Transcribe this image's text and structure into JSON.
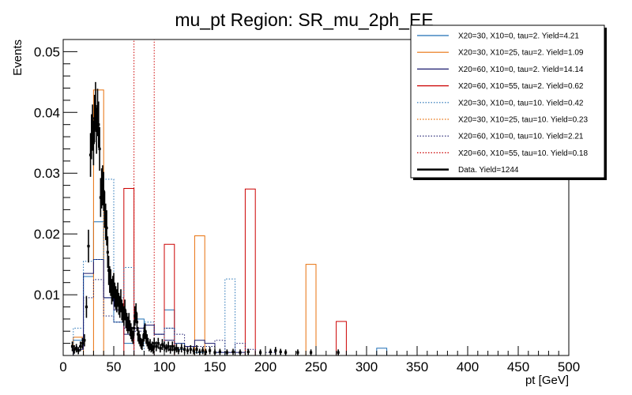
{
  "chart_data": {
    "type": "histogram",
    "title": "mu_pt Region: SR_mu_2ph_EE",
    "xlabel": "pt [GeV]",
    "ylabel": "Events",
    "xlim": [
      0,
      500
    ],
    "ylim": [
      0,
      0.052
    ],
    "x_ticks": [
      0,
      50,
      100,
      150,
      200,
      250,
      300,
      350,
      400,
      450,
      500
    ],
    "y_ticks": [
      0.01,
      0.02,
      0.03,
      0.04,
      0.05
    ],
    "y_tick_labels": [
      "0.01",
      "0.02",
      "0.03",
      "0.04",
      "0.05"
    ],
    "bin_width": 10,
    "bin_start": 0,
    "grid": false,
    "legend_position": "top-right",
    "series": [
      {
        "name": "X20=30, X10=0, tau=2. Yield=4.21",
        "color": "#1f6fb4",
        "style": "solid",
        "values": [
          0,
          0.0025,
          0.013,
          0.022,
          0.0095,
          0.0055,
          0.002,
          0.006,
          0.005,
          0.0035,
          0.0075,
          0.001,
          0.0015,
          0.0005,
          0,
          0.0005,
          0,
          0,
          0,
          0,
          0,
          0,
          0,
          0,
          0,
          0,
          0,
          0,
          0,
          0,
          0,
          0.0012,
          0,
          0,
          0,
          0,
          0,
          0,
          0,
          0,
          0,
          0,
          0,
          0,
          0,
          0,
          0,
          0,
          0,
          0
        ]
      },
      {
        "name": "X20=30, X10=25, tau=2. Yield=1.09",
        "color": "#e8700c",
        "style": "solid",
        "values": [
          0,
          0.003,
          0,
          0.0437,
          0,
          0,
          0,
          0,
          0,
          0,
          0,
          0,
          0,
          0.0197,
          0,
          0,
          0,
          0,
          0,
          0,
          0,
          0,
          0,
          0,
          0.015,
          0,
          0,
          0,
          0,
          0,
          0,
          0,
          0,
          0,
          0,
          0,
          0,
          0,
          0,
          0,
          0,
          0,
          0,
          0,
          0,
          0,
          0,
          0,
          0,
          0
        ]
      },
      {
        "name": "X20=60, X10=0, tau=2. Yield=14.14",
        "color": "#1a1a6e",
        "style": "solid",
        "values": [
          0,
          0.001,
          0.0135,
          0.0158,
          0.0095,
          0.0075,
          0.0035,
          0.0045,
          0.005,
          0.0035,
          0.0025,
          0.002,
          0.0015,
          0.0025,
          0.002,
          0.0005,
          0.0005,
          0.0005,
          0,
          0,
          0,
          0,
          0,
          0,
          0,
          0,
          0,
          0,
          0,
          0,
          0,
          0,
          0,
          0,
          0,
          0,
          0,
          0,
          0,
          0,
          0,
          0,
          0,
          0,
          0,
          0,
          0,
          0,
          0,
          0
        ]
      },
      {
        "name": "X20=60, X10=55, tau=2. Yield=0.62",
        "color": "#cc0000",
        "style": "solid",
        "values": [
          0,
          0,
          0,
          0,
          0,
          0,
          0.0275,
          0,
          0,
          0,
          0.0183,
          0,
          0,
          0,
          0,
          0,
          0,
          0,
          0.0274,
          0,
          0,
          0,
          0,
          0,
          0,
          0,
          0,
          0.0056,
          0,
          0,
          0,
          0,
          0,
          0,
          0,
          0,
          0,
          0,
          0,
          0,
          0,
          0,
          0,
          0,
          0,
          0,
          0,
          0,
          0,
          0
        ]
      },
      {
        "name": "X20=30, X10=0, tau=10. Yield=0.42",
        "color": "#1f6fb4",
        "style": "dotted",
        "values": [
          0,
          0.0045,
          0.0155,
          0.0158,
          0.029,
          0.0095,
          0.0145,
          0,
          0.0055,
          0,
          0.0045,
          0.002,
          0,
          0,
          0,
          0,
          0.0126,
          0,
          0,
          0,
          0,
          0,
          0,
          0,
          0,
          0,
          0,
          0,
          0,
          0,
          0,
          0,
          0,
          0,
          0,
          0,
          0,
          0,
          0,
          0,
          0,
          0,
          0,
          0,
          0,
          0,
          0,
          0,
          0,
          0
        ]
      },
      {
        "name": "X20=30, X10=25, tau=10. Yield=0.23",
        "color": "#e8700c",
        "style": "dotted",
        "values": [
          0,
          0,
          0,
          0,
          0,
          0,
          0,
          0,
          0,
          0,
          0,
          0,
          0,
          0,
          0,
          0,
          0,
          0,
          0,
          0,
          0,
          0,
          0,
          0,
          0,
          0,
          0,
          0,
          0,
          0,
          0,
          0,
          0,
          0,
          0,
          0,
          0,
          0,
          0,
          0,
          0,
          0,
          0,
          0,
          0,
          0,
          0,
          0,
          0,
          0
        ]
      },
      {
        "name": "X20=60, X10=0, tau=10. Yield=2.21",
        "color": "#1a1a6e",
        "style": "dotted",
        "values": [
          0,
          0.0015,
          0.0095,
          0.0125,
          0.0065,
          0.0055,
          0.0045,
          0.004,
          0.005,
          0.0035,
          0.0045,
          0.0035,
          0.0015,
          0.0015,
          0.0015,
          0.0025,
          0.0005,
          0.002,
          0.001,
          0,
          0.0005,
          0,
          0,
          0,
          0,
          0,
          0,
          0,
          0,
          0,
          0,
          0,
          0,
          0,
          0,
          0,
          0,
          0,
          0,
          0,
          0,
          0,
          0,
          0,
          0,
          0,
          0,
          0,
          0,
          0
        ]
      },
      {
        "name": "X20=60, X10=55, tau=10. Yield=0.18",
        "color": "#cc0000",
        "style": "dotted",
        "values": [
          0,
          0,
          0,
          0,
          0,
          0,
          0,
          0.052,
          0.052,
          0,
          0,
          0,
          0,
          0,
          0,
          0,
          0,
          0,
          0,
          0,
          0,
          0,
          0,
          0,
          0,
          0,
          0,
          0,
          0,
          0,
          0,
          0,
          0,
          0,
          0,
          0,
          0,
          0,
          0,
          0,
          0,
          0,
          0,
          0,
          0,
          0,
          0,
          0,
          0,
          0
        ]
      },
      {
        "name": "Data. Yield=1244",
        "color": "#000000",
        "style": "points",
        "points": [
          {
            "x": 9,
            "y": 0.0015,
            "e": 0.0008
          },
          {
            "x": 11,
            "y": 0.001,
            "e": 0.0007
          },
          {
            "x": 13,
            "y": 0.0012,
            "e": 0.0007
          },
          {
            "x": 15,
            "y": 0.0008,
            "e": 0.0006
          },
          {
            "x": 17,
            "y": 0.0015,
            "e": 0.0008
          },
          {
            "x": 19,
            "y": 0.002,
            "e": 0.0009
          },
          {
            "x": 21,
            "y": 0.0025,
            "e": 0.001
          },
          {
            "x": 23,
            "y": 0.008,
            "e": 0.0018
          },
          {
            "x": 25,
            "y": 0.018,
            "e": 0.0027
          },
          {
            "x": 27,
            "y": 0.033,
            "e": 0.0036
          },
          {
            "x": 28,
            "y": 0.036,
            "e": 0.0037
          },
          {
            "x": 29,
            "y": 0.0375,
            "e": 0.0038
          },
          {
            "x": 30,
            "y": 0.035,
            "e": 0.0037
          },
          {
            "x": 31,
            "y": 0.039,
            "e": 0.0039
          },
          {
            "x": 32,
            "y": 0.041,
            "e": 0.004
          },
          {
            "x": 33,
            "y": 0.037,
            "e": 0.0038
          },
          {
            "x": 34,
            "y": 0.04,
            "e": 0.0039
          },
          {
            "x": 35,
            "y": 0.038,
            "e": 0.0038
          },
          {
            "x": 36,
            "y": 0.034,
            "e": 0.0036
          },
          {
            "x": 37,
            "y": 0.026,
            "e": 0.0032
          },
          {
            "x": 38,
            "y": 0.0275,
            "e": 0.0033
          },
          {
            "x": 39,
            "y": 0.028,
            "e": 0.0033
          },
          {
            "x": 40,
            "y": 0.027,
            "e": 0.0032
          },
          {
            "x": 41,
            "y": 0.024,
            "e": 0.003
          },
          {
            "x": 42,
            "y": 0.022,
            "e": 0.003
          },
          {
            "x": 43,
            "y": 0.021,
            "e": 0.0029
          },
          {
            "x": 44,
            "y": 0.017,
            "e": 0.0026
          },
          {
            "x": 45,
            "y": 0.014,
            "e": 0.0024
          },
          {
            "x": 46,
            "y": 0.0125,
            "e": 0.0022
          },
          {
            "x": 47,
            "y": 0.012,
            "e": 0.0022
          },
          {
            "x": 48,
            "y": 0.0105,
            "e": 0.0021
          },
          {
            "x": 49,
            "y": 0.011,
            "e": 0.0021
          },
          {
            "x": 50,
            "y": 0.0115,
            "e": 0.0021
          },
          {
            "x": 51,
            "y": 0.01,
            "e": 0.002
          },
          {
            "x": 52,
            "y": 0.0095,
            "e": 0.0019
          },
          {
            "x": 53,
            "y": 0.009,
            "e": 0.0019
          },
          {
            "x": 54,
            "y": 0.01,
            "e": 0.002
          },
          {
            "x": 55,
            "y": 0.0085,
            "e": 0.0018
          },
          {
            "x": 56,
            "y": 0.008,
            "e": 0.0018
          },
          {
            "x": 57,
            "y": 0.009,
            "e": 0.0019
          },
          {
            "x": 58,
            "y": 0.0075,
            "e": 0.0017
          },
          {
            "x": 59,
            "y": 0.007,
            "e": 0.0016
          },
          {
            "x": 60,
            "y": 0.0065,
            "e": 0.0016
          },
          {
            "x": 61,
            "y": 0.0075,
            "e": 0.0017
          },
          {
            "x": 62,
            "y": 0.006,
            "e": 0.0015
          },
          {
            "x": 63,
            "y": 0.0055,
            "e": 0.0015
          },
          {
            "x": 64,
            "y": 0.005,
            "e": 0.0014
          },
          {
            "x": 65,
            "y": 0.0055,
            "e": 0.0015
          },
          {
            "x": 66,
            "y": 0.0045,
            "e": 0.0013
          },
          {
            "x": 67,
            "y": 0.004,
            "e": 0.0013
          },
          {
            "x": 68,
            "y": 0.0035,
            "e": 0.0012
          },
          {
            "x": 69,
            "y": 0.003,
            "e": 0.0011
          },
          {
            "x": 70,
            "y": 0.0045,
            "e": 0.0013
          },
          {
            "x": 71,
            "y": 0.0065,
            "e": 0.0016
          },
          {
            "x": 72,
            "y": 0.007,
            "e": 0.0016
          },
          {
            "x": 73,
            "y": 0.0055,
            "e": 0.0015
          },
          {
            "x": 74,
            "y": 0.0035,
            "e": 0.0012
          },
          {
            "x": 75,
            "y": 0.003,
            "e": 0.0011
          },
          {
            "x": 76,
            "y": 0.0025,
            "e": 0.001
          },
          {
            "x": 77,
            "y": 0.002,
            "e": 0.0009
          },
          {
            "x": 78,
            "y": 0.0018,
            "e": 0.0009
          },
          {
            "x": 79,
            "y": 0.0025,
            "e": 0.001
          },
          {
            "x": 80,
            "y": 0.0035,
            "e": 0.0012
          },
          {
            "x": 81,
            "y": 0.004,
            "e": 0.0013
          },
          {
            "x": 82,
            "y": 0.003,
            "e": 0.0011
          },
          {
            "x": 83,
            "y": 0.0025,
            "e": 0.001
          },
          {
            "x": 84,
            "y": 0.002,
            "e": 0.0009
          },
          {
            "x": 85,
            "y": 0.0015,
            "e": 0.0008
          },
          {
            "x": 86,
            "y": 0.0018,
            "e": 0.0009
          },
          {
            "x": 87,
            "y": 0.0012,
            "e": 0.0007
          },
          {
            "x": 88,
            "y": 0.0015,
            "e": 0.0008
          },
          {
            "x": 89,
            "y": 0.001,
            "e": 0.0007
          },
          {
            "x": 90,
            "y": 0.002,
            "e": 0.0009
          },
          {
            "x": 92,
            "y": 0.0015,
            "e": 0.0008
          },
          {
            "x": 94,
            "y": 0.002,
            "e": 0.0009
          },
          {
            "x": 96,
            "y": 0.0012,
            "e": 0.0007
          },
          {
            "x": 98,
            "y": 0.0018,
            "e": 0.0009
          },
          {
            "x": 100,
            "y": 0.0015,
            "e": 0.0008
          },
          {
            "x": 102,
            "y": 0.0012,
            "e": 0.0007
          },
          {
            "x": 104,
            "y": 0.0015,
            "e": 0.0008
          },
          {
            "x": 106,
            "y": 0.001,
            "e": 0.0007
          },
          {
            "x": 108,
            "y": 0.0015,
            "e": 0.0008
          },
          {
            "x": 110,
            "y": 0.001,
            "e": 0.0007
          },
          {
            "x": 112,
            "y": 0.0012,
            "e": 0.0007
          },
          {
            "x": 114,
            "y": 0.0008,
            "e": 0.0006
          },
          {
            "x": 117,
            "y": 0.0012,
            "e": 0.0007
          },
          {
            "x": 120,
            "y": 0.001,
            "e": 0.0007
          },
          {
            "x": 123,
            "y": 0.0008,
            "e": 0.0006
          },
          {
            "x": 126,
            "y": 0.001,
            "e": 0.0007
          },
          {
            "x": 129,
            "y": 0.0008,
            "e": 0.0006
          },
          {
            "x": 132,
            "y": 0.001,
            "e": 0.0007
          },
          {
            "x": 135,
            "y": 0.0006,
            "e": 0.0005
          },
          {
            "x": 138,
            "y": 0.0008,
            "e": 0.0006
          },
          {
            "x": 141,
            "y": 0.0006,
            "e": 0.0005
          },
          {
            "x": 145,
            "y": 0.0008,
            "e": 0.0006
          },
          {
            "x": 150,
            "y": 0.0005,
            "e": 0.0005
          },
          {
            "x": 155,
            "y": 0.0006,
            "e": 0.0005
          },
          {
            "x": 162,
            "y": 0.0005,
            "e": 0.0005
          },
          {
            "x": 168,
            "y": 0.0006,
            "e": 0.0005
          },
          {
            "x": 175,
            "y": 0.0005,
            "e": 0.0005
          },
          {
            "x": 183,
            "y": 0.0006,
            "e": 0.0005
          },
          {
            "x": 195,
            "y": 0.0005,
            "e": 0.0005
          },
          {
            "x": 205,
            "y": 0.0006,
            "e": 0.0005
          },
          {
            "x": 210,
            "y": 0.0008,
            "e": 0.0006
          },
          {
            "x": 215,
            "y": 0.0006,
            "e": 0.0005
          },
          {
            "x": 220,
            "y": 0.0005,
            "e": 0.0005
          },
          {
            "x": 232,
            "y": 0.0005,
            "e": 0.0005
          },
          {
            "x": 245,
            "y": 0.0005,
            "e": 0.0005
          },
          {
            "x": 272,
            "y": 0.0005,
            "e": 0.0005
          }
        ]
      }
    ]
  }
}
